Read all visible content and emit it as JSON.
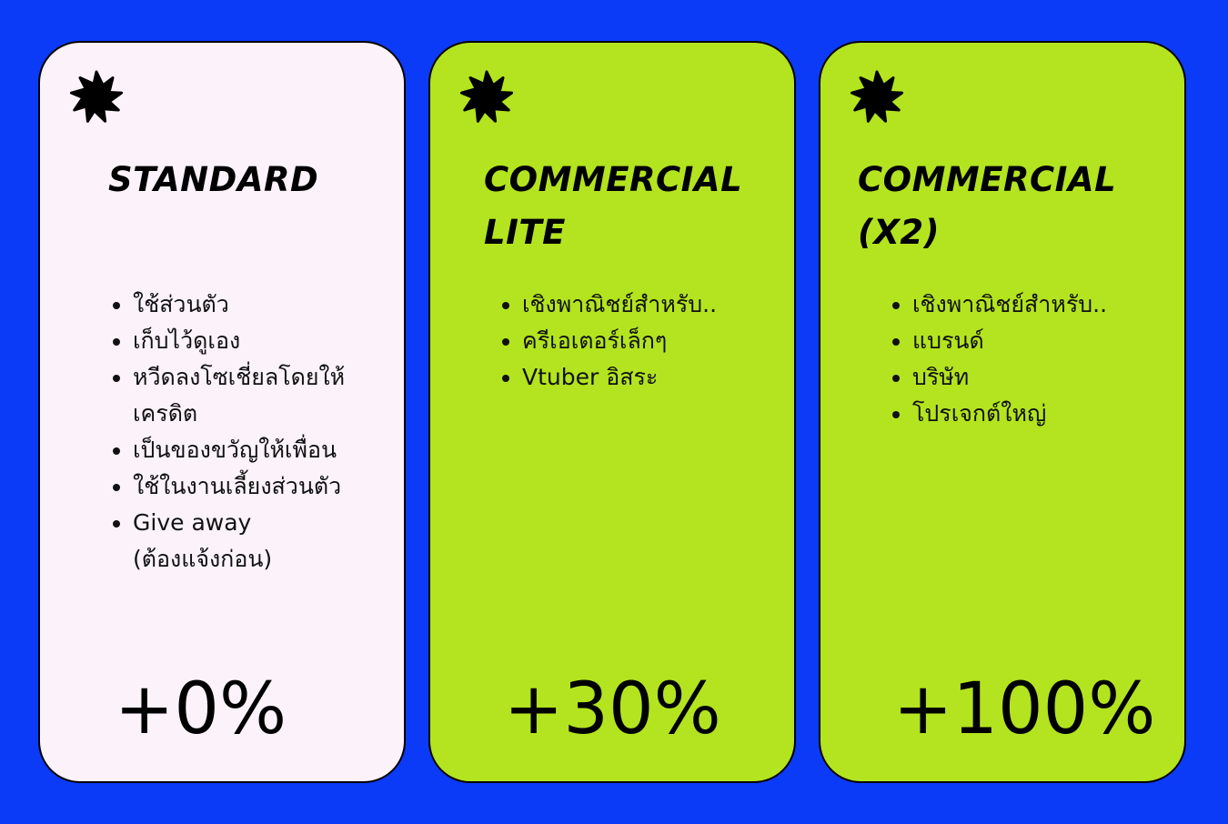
{
  "colors": {
    "background": "#0b3bf7",
    "standard_card": "#fcf3fa",
    "commercial_card": "#b3e41f"
  },
  "cards": [
    {
      "icon": "star-burst-icon",
      "title_lines": [
        "STANDARD"
      ],
      "features": [
        "ใช้ส่วนตัว",
        "เก็บไว้ดูเอง",
        "หวีดลงโซเชี่ยลโดยให้เครดิต",
        "เป็นของขวัญให้เพื่อน",
        "ใช้ในงานเลี้ยงส่วนตัว",
        "Give away (ต้องแจ้งก่อน)"
      ],
      "price": "+0%"
    },
    {
      "icon": "star-burst-icon",
      "title_lines": [
        "COMMERCIAL",
        "LITE"
      ],
      "features": [
        "เชิงพาณิชย์สำหรับ..",
        "ครีเอเตอร์เล็กๆ",
        "Vtuber อิสระ"
      ],
      "price": "+30%"
    },
    {
      "icon": "star-burst-icon",
      "title_lines": [
        "COMMERCIAL",
        "(X2)"
      ],
      "features": [
        "เชิงพาณิชย์สำหรับ..",
        "แบรนด์",
        "บริษัท",
        "โปรเจกต์ใหญ่"
      ],
      "price": "+100%"
    }
  ]
}
